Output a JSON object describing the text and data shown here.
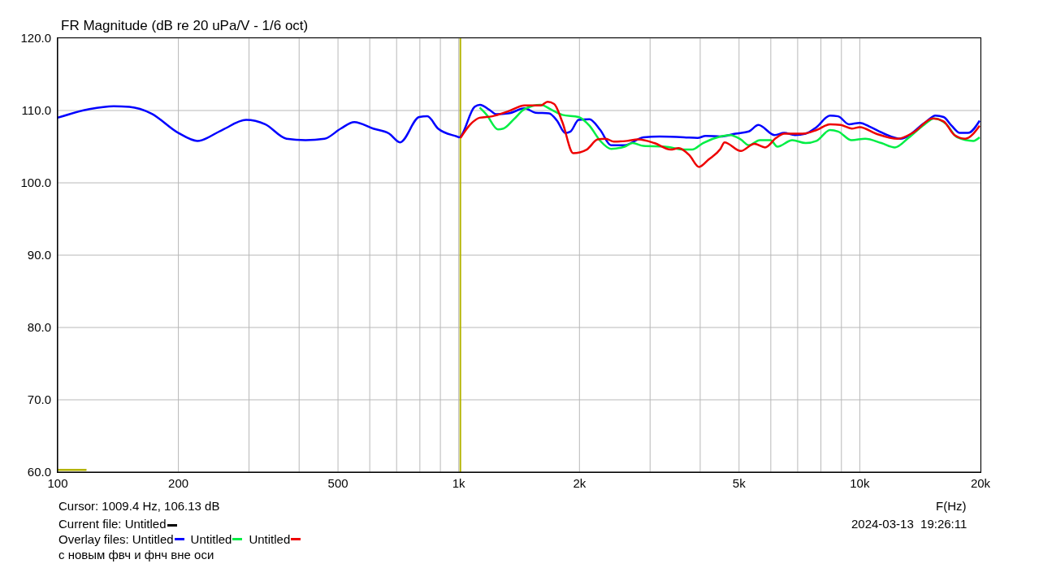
{
  "chart_data": {
    "type": "line",
    "title": "FR Magnitude (dB re 20 uPa/V - 1/6 oct)",
    "xlabel": "F(Hz)",
    "log": "x",
    "grid": true,
    "legend": "bottom left",
    "legend_title": "Overlay files:",
    "line_style": "solid",
    "marker": "none",
    "xlim": [
      100,
      20000
    ],
    "xticks": [
      100,
      {
        "value": 200,
        "label": "200"
      },
      {
        "value": 300,
        "label": null
      },
      {
        "value": 400,
        "label": null
      },
      500,
      {
        "value": 600,
        "label": null
      },
      {
        "value": 700,
        "label": null
      },
      {
        "value": 800,
        "label": null
      },
      {
        "value": 900,
        "label": null
      },
      {
        "value": 1000,
        "label": "1k"
      },
      {
        "value": 2000,
        "label": "2k"
      },
      {
        "value": 3000,
        "label": null
      },
      {
        "value": 4000,
        "label": null
      },
      {
        "value": 5000,
        "label": "5k"
      },
      {
        "value": 6000,
        "label": null
      },
      {
        "value": 7000,
        "label": null
      },
      {
        "value": 8000,
        "label": null
      },
      {
        "value": 9000,
        "label": null
      },
      {
        "value": 10000,
        "label": "10k"
      },
      {
        "value": 20000,
        "label": "20k"
      }
    ],
    "ylim": [
      60,
      120
    ],
    "yticks": [
      {
        "value": 60,
        "label": "60.0"
      },
      {
        "value": 70,
        "label": "70.0"
      },
      {
        "value": 80,
        "label": "80.0"
      },
      {
        "value": 90,
        "label": "90.0"
      },
      {
        "value": 100,
        "label": "100.0"
      },
      {
        "value": 110,
        "label": "110.0"
      },
      {
        "value": 120,
        "label": "120.0"
      }
    ],
    "ref_lines": [
      {
        "axis": "x",
        "value": 1009.4,
        "color": "#b4b400"
      }
    ],
    "annotations": [
      "Cursor: 1009.4 Hz, 106.13 dB",
      "Current file: Untitled",
      "с новым фвч и фнч вне оси",
      "2024-03-13  19:26:11"
    ],
    "series": [
      {
        "name": "Untitled",
        "color": "#0000ff",
        "x": [
          100,
          120,
          138,
          151,
          171,
          200,
          223,
          257,
          295,
          329,
          372,
          415,
          463,
          508,
          549,
          612,
          671,
          714,
          797,
          835,
          888,
          990,
          1002,
          1095,
          1130,
          1192,
          1240,
          1330,
          1460,
          1553,
          1679,
          1758,
          1842,
          1900,
          1990,
          2118,
          2254,
          2398,
          2592,
          2888,
          3170,
          3646,
          3940,
          4128,
          4493,
          4898,
          5291,
          5587,
          6134,
          6476,
          6890,
          7330,
          7800,
          8430,
          8830,
          9400,
          10000,
          10640,
          11500,
          12620,
          14520,
          15440,
          16180,
          16940,
          17760,
          18610,
          19900
        ],
        "values": [
          109.0,
          110.2,
          110.6,
          110.5,
          109.6,
          106.9,
          105.8,
          107.3,
          108.7,
          108.1,
          106.1,
          105.9,
          106.1,
          107.5,
          108.4,
          107.5,
          106.8,
          105.6,
          109.1,
          109.2,
          107.5,
          106.4,
          106.3,
          110.5,
          110.8,
          110.1,
          109.5,
          109.6,
          110.3,
          109.7,
          109.6,
          108.6,
          106.9,
          107.1,
          108.7,
          108.8,
          107.3,
          105.2,
          105.2,
          106.3,
          106.4,
          106.3,
          106.2,
          106.5,
          106.4,
          106.8,
          107.1,
          108.0,
          106.6,
          106.9,
          106.6,
          106.8,
          107.7,
          109.3,
          109.2,
          108.1,
          108.3,
          107.7,
          106.8,
          106.1,
          108.3,
          109.3,
          109.1,
          107.9,
          106.9,
          106.9,
          108.6
        ]
      },
      {
        "name": "Untitled",
        "color": "#00ee44",
        "x": [
          1128,
          1174,
          1252,
          1292,
          1373,
          1460,
          1602,
          1704,
          1813,
          1990,
          2118,
          2254,
          2398,
          2592,
          2715,
          2888,
          3271,
          3646,
          3820,
          4066,
          4493,
          4750,
          5050,
          5291,
          5632,
          5994,
          6230,
          6786,
          7330,
          7800,
          8430,
          8830,
          9545,
          10320,
          11320,
          12240,
          13220,
          14520,
          15330,
          16440,
          17480,
          19190,
          19900
        ],
        "values": [
          110.4,
          109.4,
          107.4,
          107.5,
          108.8,
          110.2,
          110.8,
          110.1,
          109.4,
          109.1,
          107.9,
          105.8,
          104.7,
          105.0,
          105.5,
          105.1,
          105.0,
          104.6,
          104.6,
          105.5,
          106.4,
          106.6,
          106.0,
          105.2,
          105.9,
          105.9,
          105.0,
          105.9,
          105.5,
          105.8,
          107.3,
          107.1,
          105.9,
          106.1,
          105.5,
          104.9,
          106.2,
          108.1,
          108.9,
          108.1,
          106.3,
          105.8,
          106.3
        ]
      },
      {
        "name": "Untitled",
        "color": "#ee0000",
        "x": [
          1010,
          1070,
          1128,
          1212,
          1330,
          1460,
          1602,
          1665,
          1730,
          1813,
          1930,
          2085,
          2220,
          2325,
          2436,
          2632,
          2800,
          3074,
          3375,
          3535,
          3761,
          3972,
          4193,
          4493,
          4600,
          5050,
          5460,
          5807,
          6183,
          6476,
          7220,
          7800,
          8430,
          8970,
          9545,
          10000,
          10980,
          12430,
          13640,
          15210,
          16180,
          17220,
          18320,
          19900
        ],
        "values": [
          106.2,
          108.1,
          109.0,
          109.2,
          109.9,
          110.7,
          110.7,
          111.2,
          110.9,
          108.4,
          104.1,
          104.6,
          106.0,
          106.1,
          105.7,
          105.8,
          106.0,
          105.5,
          104.6,
          104.8,
          103.8,
          102.2,
          103.2,
          104.7,
          105.6,
          104.4,
          105.4,
          104.9,
          106.2,
          106.8,
          106.8,
          107.3,
          108.1,
          108.0,
          107.5,
          107.7,
          106.8,
          106.1,
          107.0,
          108.9,
          108.5,
          106.6,
          106.1,
          107.9
        ]
      },
      {
        "color": "#b4b400",
        "x": [
          100,
          118
        ],
        "values": [
          60.3,
          60.3
        ]
      }
    ]
  }
}
